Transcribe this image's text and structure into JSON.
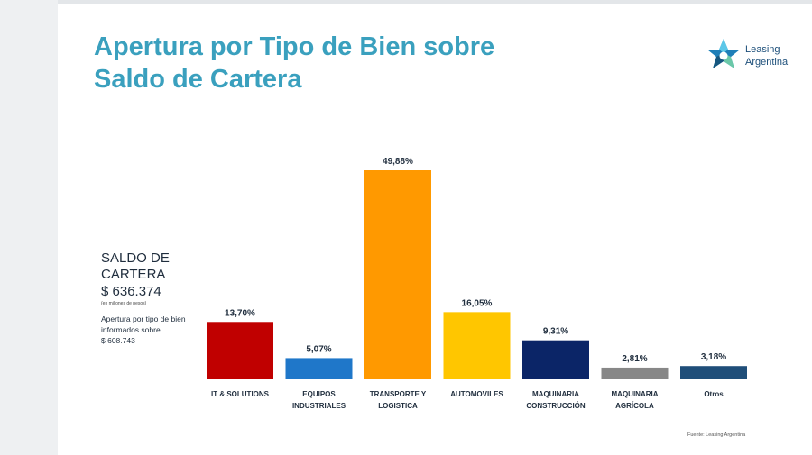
{
  "title": {
    "line1": "Apertura por Tipo de Bien sobre",
    "line2": "Saldo de Cartera"
  },
  "logo": {
    "line1": "Leasing",
    "line2": "Argentina",
    "icon": "leasing-argentina-star-icon"
  },
  "saldo": {
    "heading1": "SALDO DE",
    "heading2": "CARTERA",
    "amount": "$ 636.374",
    "unit": "(en millones de pesos)",
    "note": "Apertura por tipo de bien informados sobre",
    "note_value": "$ 608.743"
  },
  "source": "Fuente: Leasing Argentina",
  "chart_data": {
    "type": "bar",
    "title": "Apertura por Tipo de Bien sobre Saldo de Cartera",
    "xlabel": "",
    "ylabel": "",
    "ylim": [
      0,
      55
    ],
    "grid": false,
    "categories": [
      [
        "IT & SOLUTIONS"
      ],
      [
        "EQUIPOS",
        "INDUSTRIALES"
      ],
      [
        "TRANSPORTE Y",
        "LOGISTICA"
      ],
      [
        "AUTOMOVILES"
      ],
      [
        "MAQUINARIA",
        "CONSTRUCCIÓN"
      ],
      [
        "MAQUINARIA",
        "AGRÍCOLA"
      ],
      [
        "Otros"
      ]
    ],
    "values": [
      13.7,
      5.07,
      49.88,
      16.05,
      9.31,
      2.81,
      3.18
    ],
    "labels": [
      "13,70%",
      "5,07%",
      "49,88%",
      "16,05%",
      "9,31%",
      "2,81%",
      "3,18%"
    ],
    "colors": [
      "#c00000",
      "#1f77c9",
      "#ff9900",
      "#ffc600",
      "#0b2567",
      "#878787",
      "#1f4e79"
    ]
  }
}
